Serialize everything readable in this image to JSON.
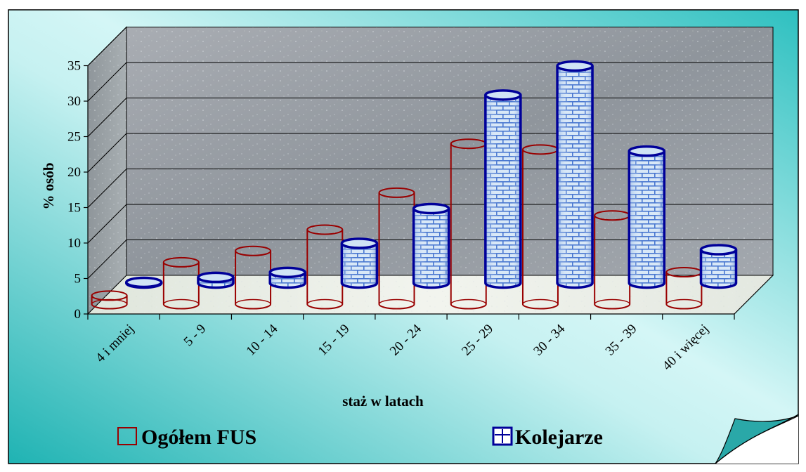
{
  "chart_data": {
    "type": "bar",
    "categories": [
      "4 i mniej",
      "5 - 9",
      "10 - 14",
      "15 - 19",
      "20 - 24",
      "25 - 29",
      "30 - 34",
      "35 - 39",
      "40 i więcej"
    ],
    "series": [
      {
        "name": "Ogółem FUS",
        "values": [
          1.2,
          5.9,
          7.5,
          10.5,
          15.7,
          22.6,
          21.8,
          12.5,
          4.5
        ]
      },
      {
        "name": "Kolejarze",
        "values": [
          0.1,
          0.8,
          1.5,
          5.6,
          10.5,
          26.5,
          30.6,
          18.6,
          4.7
        ]
      }
    ],
    "xlabel": "staż w latach",
    "ylabel": "% osób",
    "ylim": [
      0,
      35
    ],
    "yticks": [
      "0",
      "5",
      "10",
      "15",
      "20",
      "25",
      "30",
      "35"
    ],
    "grid": true,
    "legend_position": "bottom",
    "colors": {
      "ogolem_outline": "#990000",
      "kolejarze_outline": "#000099",
      "kolejarze_fill": "#cfe3f5",
      "brick_mortar": "#4a78d0",
      "background_teal": "#2fbdbd",
      "wall": "#9aa0a8",
      "floor": "#e9ece6"
    }
  }
}
